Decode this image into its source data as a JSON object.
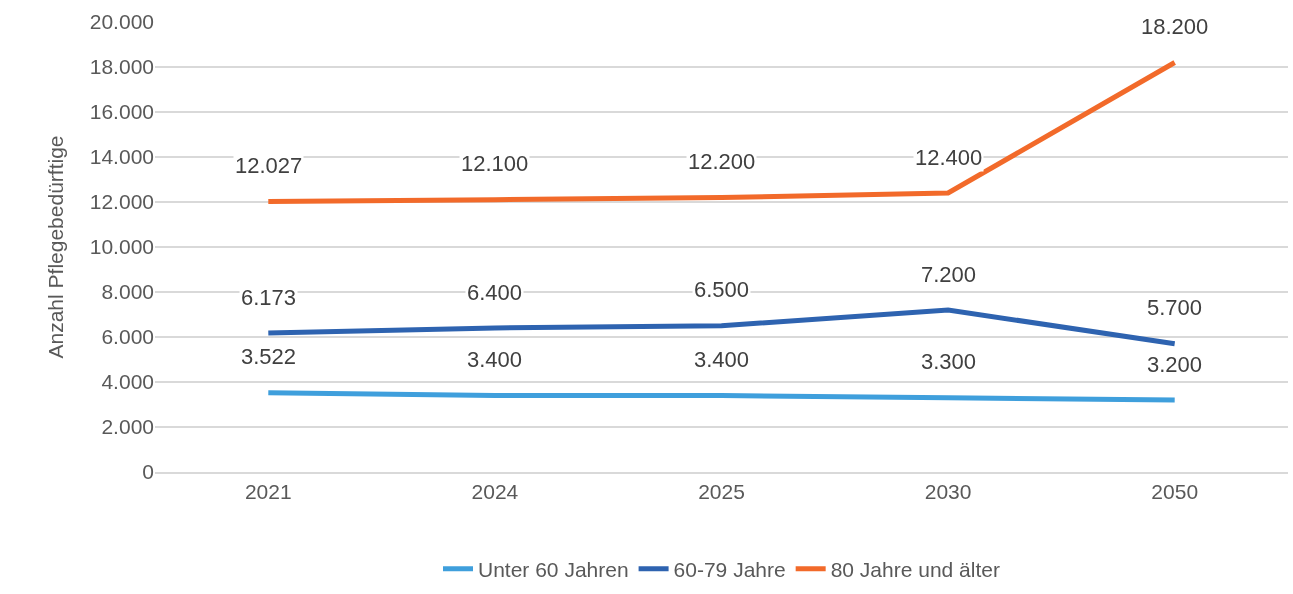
{
  "chart_data": {
    "type": "line",
    "ylabel": "Anzahl Pflegebedürftige",
    "categories": [
      "2021",
      "2024",
      "2025",
      "2030",
      "2050"
    ],
    "series": [
      {
        "name": "Unter 60 Jahren",
        "color": "#3f9fdc",
        "values": [
          3522,
          3400,
          3400,
          3300,
          3200
        ],
        "value_labels": [
          "3.522",
          "3.400",
          "3.400",
          "3.300",
          "3.200"
        ]
      },
      {
        "name": "60-79 Jahre",
        "color": "#2e63b0",
        "values": [
          6173,
          6400,
          6500,
          7200,
          5700
        ],
        "value_labels": [
          "6.173",
          "6.400",
          "6.500",
          "7.200",
          "5.700"
        ]
      },
      {
        "name": "80 Jahre und älter",
        "color": "#f26a2a",
        "values": [
          12027,
          12100,
          12200,
          12400,
          18200
        ],
        "value_labels": [
          "12.027",
          "12.100",
          "12.200",
          "12.400",
          "18.200"
        ]
      }
    ],
    "ylim": [
      0,
      20000
    ],
    "yticks": [
      0,
      {
        "value": 2000,
        "label": "2.000"
      },
      {
        "value": 4000,
        "label": "4.000"
      },
      {
        "value": 6000,
        "label": "6.000"
      },
      {
        "value": 8000,
        "label": "8.000"
      },
      {
        "value": 10000,
        "label": "10.000"
      },
      {
        "value": 12000,
        "label": "12.000"
      },
      {
        "value": 14000,
        "label": "14.000"
      },
      {
        "value": 16000,
        "label": "16.000"
      },
      {
        "value": 18000,
        "label": "18.000"
      },
      {
        "value": 20000,
        "label": "20.000"
      }
    ],
    "grid": "y",
    "legend": "bottom",
    "marker": "none",
    "line_style": "solid"
  }
}
